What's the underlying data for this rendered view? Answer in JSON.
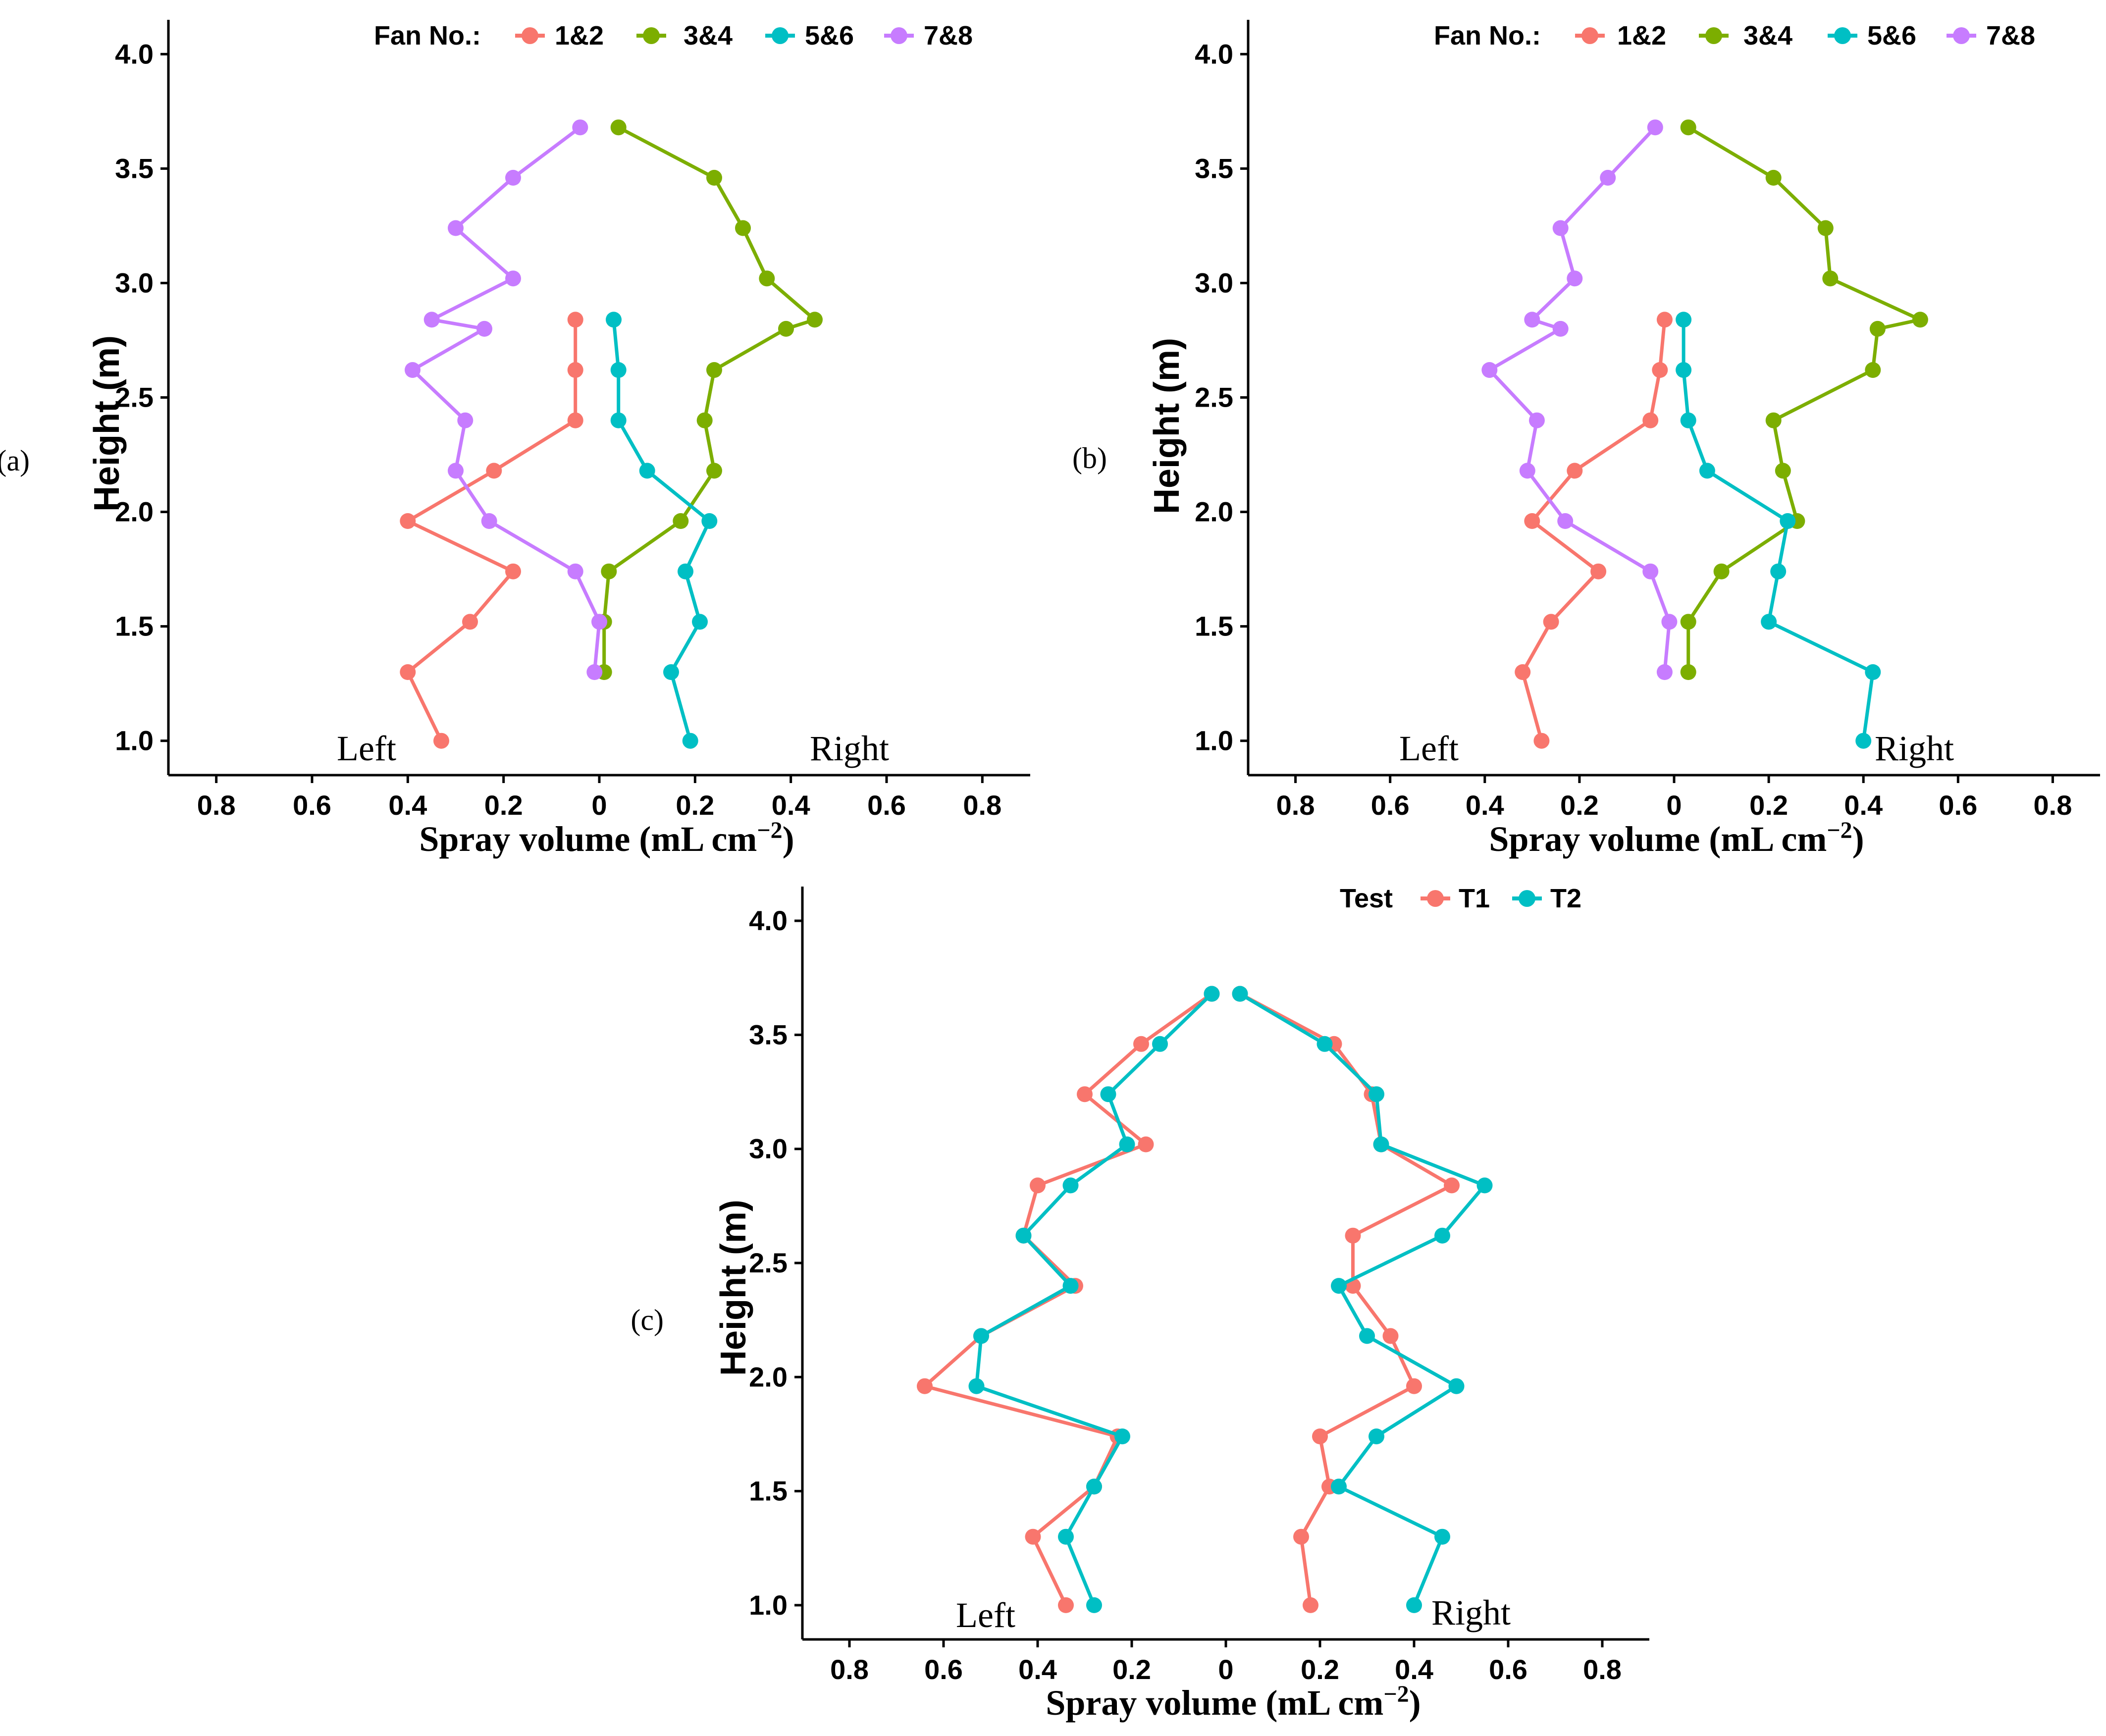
{
  "colors": {
    "red": "#f8766d",
    "green": "#7cae00",
    "cyan": "#00bfc4",
    "purple": "#c77cff"
  },
  "chart_data": [
    {
      "type": "line",
      "panel_label": "(a)",
      "ylabel": "Height (m)",
      "xlabel": "Spray volume (mL cm",
      "xlabel_sup": "−2",
      "xlabel_tail": ")",
      "legend_title": "Fan No.:",
      "left_label": "Left",
      "right_label": "Right",
      "ylim": [
        0.85,
        4.15
      ],
      "xlim": [
        -0.9,
        0.9
      ],
      "y_ticks": [
        "1.0",
        "1.5",
        "2.0",
        "2.5",
        "3.0",
        "3.5",
        "4.0"
      ],
      "x_ticks": [
        "0.8",
        "0.6",
        "0.4",
        "0.2",
        "0",
        "0.2",
        "0.4",
        "0.6",
        "0.8"
      ],
      "series": [
        {
          "name": "1&2",
          "color": "#f8766d",
          "x": [
            -0.05,
            -0.05,
            -0.05,
            -0.22,
            -0.4,
            -0.18,
            -0.27,
            -0.4,
            -0.33
          ],
          "y": [
            2.84,
            2.62,
            2.4,
            2.18,
            1.96,
            1.74,
            1.52,
            1.3,
            1.0
          ]
        },
        {
          "name": "3&4",
          "color": "#7cae00",
          "x": [
            0.04,
            0.24,
            0.3,
            0.35,
            0.45,
            0.39,
            0.24,
            0.22,
            0.24,
            0.17,
            0.02,
            0.01,
            0.01
          ],
          "y": [
            3.68,
            3.46,
            3.24,
            3.02,
            2.84,
            2.8,
            2.62,
            2.4,
            2.18,
            1.96,
            1.74,
            1.52,
            1.3
          ]
        },
        {
          "name": "5&6",
          "color": "#00bfc4",
          "x": [
            0.03,
            0.04,
            0.04,
            0.1,
            0.23,
            0.18,
            0.21,
            0.15,
            0.19
          ],
          "y": [
            2.84,
            2.62,
            2.4,
            2.18,
            1.96,
            1.74,
            1.52,
            1.3,
            1.0
          ]
        },
        {
          "name": "7&8",
          "color": "#c77cff",
          "x": [
            -0.04,
            -0.18,
            -0.3,
            -0.18,
            -0.35,
            -0.24,
            -0.39,
            -0.28,
            -0.3,
            -0.23,
            -0.05,
            0.0,
            -0.01
          ],
          "y": [
            3.68,
            3.46,
            3.24,
            3.02,
            2.84,
            2.8,
            2.62,
            2.4,
            2.18,
            1.96,
            1.74,
            1.52,
            1.3
          ]
        }
      ]
    },
    {
      "type": "line",
      "panel_label": "(b)",
      "ylabel": "Height (m)",
      "xlabel": "Spray volume (mL cm",
      "xlabel_sup": "−2",
      "xlabel_tail": ")",
      "legend_title": "Fan No.:",
      "left_label": "Left",
      "right_label": "Right",
      "ylim": [
        0.85,
        4.15
      ],
      "xlim": [
        -0.9,
        0.9
      ],
      "y_ticks": [
        "1.0",
        "1.5",
        "2.0",
        "2.5",
        "3.0",
        "3.5",
        "4.0"
      ],
      "x_ticks": [
        "0.8",
        "0.6",
        "0.4",
        "0.2",
        "0",
        "0.2",
        "0.4",
        "0.6",
        "0.8"
      ],
      "series": [
        {
          "name": "1&2",
          "color": "#f8766d",
          "x": [
            -0.02,
            -0.03,
            -0.05,
            -0.21,
            -0.3,
            -0.16,
            -0.26,
            -0.32,
            -0.28
          ],
          "y": [
            2.84,
            2.62,
            2.4,
            2.18,
            1.96,
            1.74,
            1.52,
            1.3,
            1.0
          ]
        },
        {
          "name": "3&4",
          "color": "#7cae00",
          "x": [
            0.03,
            0.21,
            0.32,
            0.33,
            0.52,
            0.43,
            0.42,
            0.21,
            0.23,
            0.26,
            0.1,
            0.03,
            0.03
          ],
          "y": [
            3.68,
            3.46,
            3.24,
            3.02,
            2.84,
            2.8,
            2.62,
            2.4,
            2.18,
            1.96,
            1.74,
            1.52,
            1.3
          ]
        },
        {
          "name": "5&6",
          "color": "#00bfc4",
          "x": [
            0.02,
            0.02,
            0.03,
            0.07,
            0.24,
            0.22,
            0.2,
            0.42,
            0.4
          ],
          "y": [
            2.84,
            2.62,
            2.4,
            2.18,
            1.96,
            1.74,
            1.52,
            1.3,
            1.0
          ]
        },
        {
          "name": "7&8",
          "color": "#c77cff",
          "x": [
            -0.04,
            -0.14,
            -0.24,
            -0.21,
            -0.3,
            -0.24,
            -0.39,
            -0.29,
            -0.31,
            -0.23,
            -0.05,
            -0.01,
            -0.02
          ],
          "y": [
            3.68,
            3.46,
            3.24,
            3.02,
            2.84,
            2.8,
            2.62,
            2.4,
            2.18,
            1.96,
            1.74,
            1.52,
            1.3
          ]
        }
      ]
    },
    {
      "type": "line",
      "panel_label": "(c)",
      "ylabel": "Height (m)",
      "xlabel": "Spray volume (mL cm",
      "xlabel_sup": "−2",
      "xlabel_tail": ")",
      "legend_title": "Test",
      "left_label": "Left",
      "right_label": "Right",
      "ylim": [
        0.85,
        4.15
      ],
      "xlim": [
        -0.9,
        0.9
      ],
      "y_ticks": [
        "1.0",
        "1.5",
        "2.0",
        "2.5",
        "3.0",
        "3.5",
        "4.0"
      ],
      "x_ticks": [
        "0.8",
        "0.6",
        "0.4",
        "0.2",
        "0",
        "0.2",
        "0.4",
        "0.6",
        "0.8"
      ],
      "series": [
        {
          "name": "T1",
          "color": "#f8766d",
          "segments": [
            {
              "x": [
                -0.03,
                -0.18,
                -0.3,
                -0.17,
                -0.4,
                -0.43,
                -0.32,
                -0.52,
                -0.64,
                -0.23,
                -0.28,
                -0.41,
                -0.34
              ],
              "y": [
                3.68,
                3.46,
                3.24,
                3.02,
                2.84,
                2.62,
                2.4,
                2.18,
                1.96,
                1.74,
                1.52,
                1.3,
                1.0
              ]
            },
            {
              "x": [
                0.03,
                0.23,
                0.31,
                0.33,
                0.48,
                0.27,
                0.27,
                0.35,
                0.4,
                0.2,
                0.22,
                0.16,
                0.18
              ],
              "y": [
                3.68,
                3.46,
                3.24,
                3.02,
                2.84,
                2.62,
                2.4,
                2.18,
                1.96,
                1.74,
                1.52,
                1.3,
                1.0
              ]
            }
          ]
        },
        {
          "name": "T2",
          "color": "#00bfc4",
          "segments": [
            {
              "x": [
                -0.03,
                -0.14,
                -0.25,
                -0.21,
                -0.33,
                -0.43,
                -0.33,
                -0.52,
                -0.53,
                -0.22,
                -0.28,
                -0.34,
                -0.28
              ],
              "y": [
                3.68,
                3.46,
                3.24,
                3.02,
                2.84,
                2.62,
                2.4,
                2.18,
                1.96,
                1.74,
                1.52,
                1.3,
                1.0
              ]
            },
            {
              "x": [
                0.03,
                0.21,
                0.32,
                0.33,
                0.55,
                0.46,
                0.24,
                0.3,
                0.49,
                0.32,
                0.24,
                0.46,
                0.4
              ],
              "y": [
                3.68,
                3.46,
                3.24,
                3.02,
                2.84,
                2.62,
                2.4,
                2.18,
                1.96,
                1.74,
                1.52,
                1.3,
                1.0
              ]
            }
          ]
        }
      ]
    }
  ]
}
